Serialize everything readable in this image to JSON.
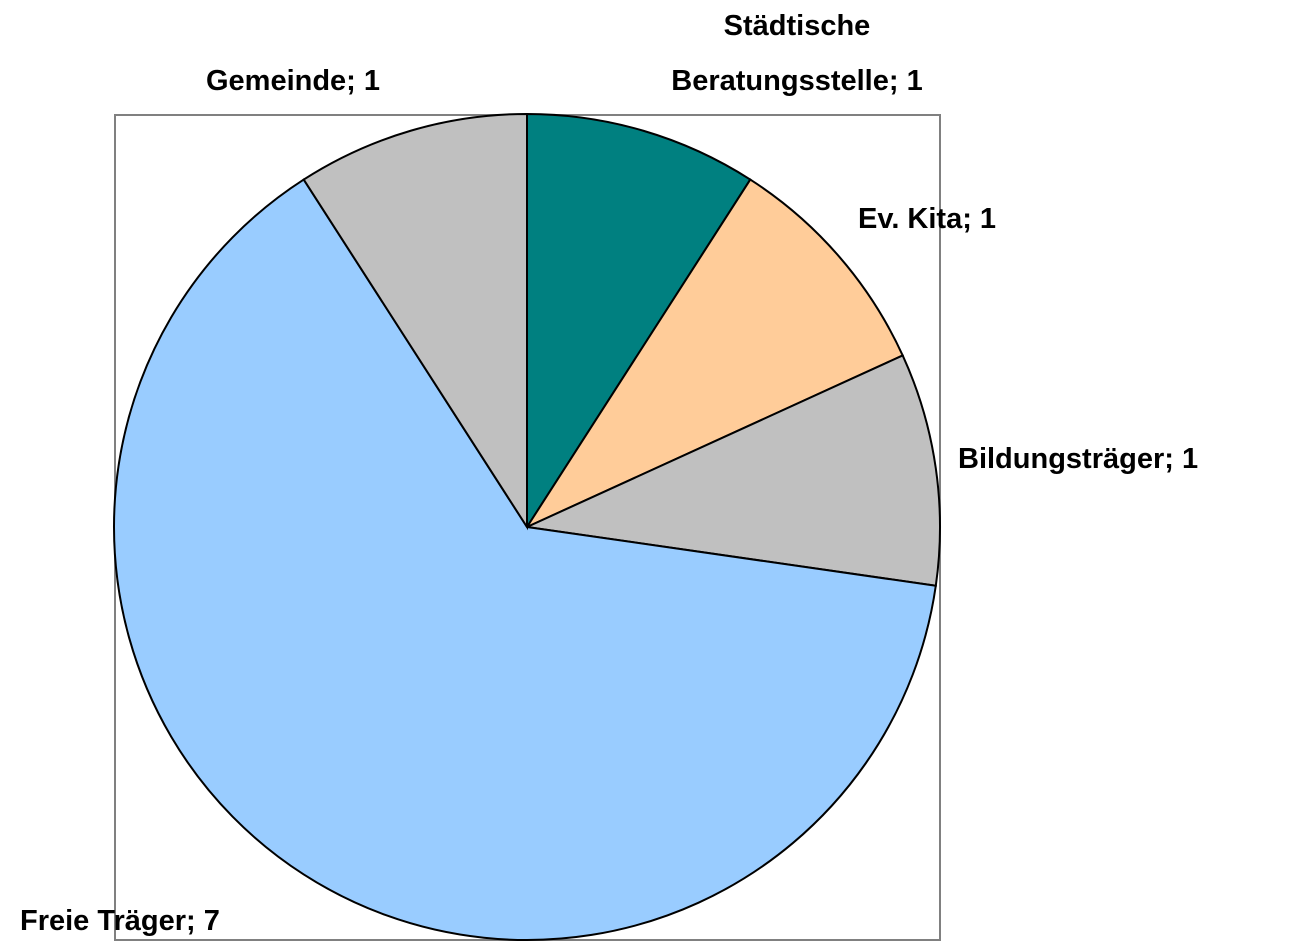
{
  "chart_data": {
    "type": "pie",
    "values": [
      1,
      1,
      1,
      7,
      1
    ],
    "value_labels": [
      "Städtische\nBeratungsstelle; 1",
      "Ev. Kita; 1",
      "Bildungsträger; 1",
      "Freie Träger; 7",
      "Gemeinde; 1"
    ],
    "colors": [
      "#008080",
      "#ffcc99",
      "#c0c0c0",
      "#99ccff",
      "#c0c0c0"
    ],
    "start_angle": 0,
    "direction": "clockwise"
  }
}
